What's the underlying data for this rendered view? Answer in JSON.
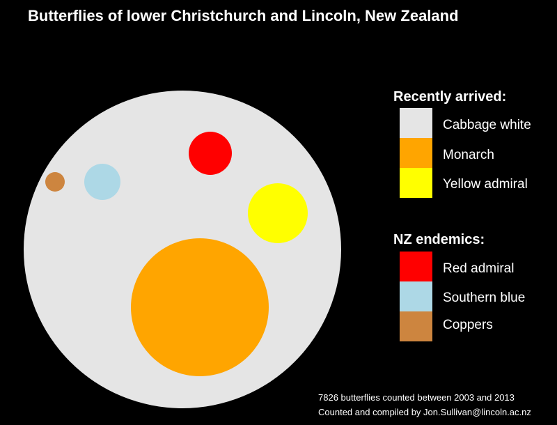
{
  "chart_data": {
    "type": "bubble-packing",
    "title": "Butterflies of lower Christchurch and Lincoln, New Zealand",
    "total_count": 7826,
    "groups": [
      {
        "name": "Recently arrived:",
        "species": [
          {
            "label": "Cabbage white",
            "color": "#e5e5e5"
          },
          {
            "label": "Monarch",
            "color": "#ffa500"
          },
          {
            "label": "Yellow admiral",
            "color": "#ffff00"
          }
        ]
      },
      {
        "name": "NZ endemics:",
        "species": [
          {
            "label": "Red admiral",
            "color": "#ff0000"
          },
          {
            "label": "Southern blue",
            "color": "#add8e6"
          },
          {
            "label": "Coppers",
            "color": "#cd853f"
          }
        ]
      }
    ],
    "footer_lines": [
      "7826 butterflies counted between 2003 and 2013",
      "Counted and compiled by Jon.Sullivan@lincoln.ac.nz"
    ]
  }
}
